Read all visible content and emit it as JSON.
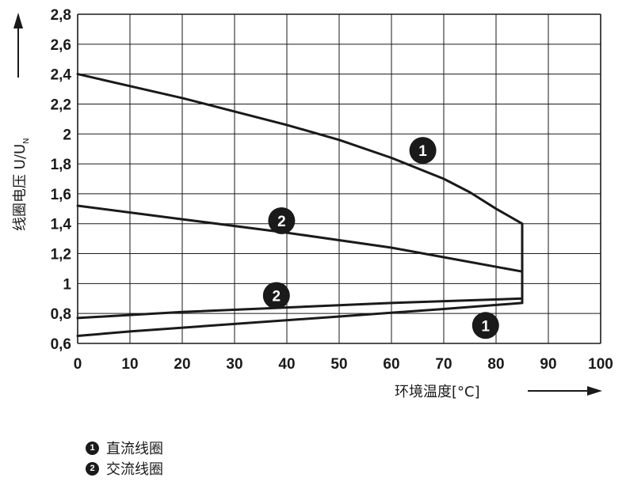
{
  "chart_data": {
    "type": "line",
    "xlabel": "环境温度[°C]",
    "ylabel": "线圈电压 U/U",
    "ylabel_subscript": "N",
    "xlim": [
      0,
      100
    ],
    "ylim": [
      0.6,
      2.8
    ],
    "xticks": [
      "0",
      "10",
      "20",
      "30",
      "40",
      "50",
      "60",
      "70",
      "80",
      "90",
      "100"
    ],
    "yticks": [
      "0,6",
      "0,8",
      "1",
      "1,2",
      "1,4",
      "1,6",
      "1,8",
      "2",
      "2,2",
      "2,4",
      "2,6",
      "2,8"
    ],
    "xtick_values": [
      0,
      10,
      20,
      30,
      40,
      50,
      60,
      70,
      80,
      90,
      100
    ],
    "ytick_values": [
      0.6,
      0.8,
      1.0,
      1.2,
      1.4,
      1.6,
      1.8,
      2.0,
      2.2,
      2.4,
      2.6,
      2.8
    ],
    "grid": true,
    "legend_position": "below-left",
    "series": [
      {
        "name": "直流线圈",
        "marker_label": "1",
        "x": [
          0,
          10,
          20,
          30,
          40,
          50,
          60,
          70,
          75,
          80,
          85,
          85,
          70,
          50,
          30,
          10,
          0
        ],
        "y": [
          2.4,
          2.32,
          2.24,
          2.15,
          2.06,
          1.96,
          1.84,
          1.7,
          1.61,
          1.5,
          1.4,
          0.87,
          0.83,
          0.78,
          0.73,
          0.68,
          0.65
        ]
      },
      {
        "name": "交流线圈",
        "marker_label": "2",
        "x": [
          0,
          20,
          40,
          60,
          85,
          85,
          60,
          40,
          20,
          0
        ],
        "y": [
          1.52,
          1.43,
          1.34,
          1.24,
          1.08,
          0.9,
          0.87,
          0.84,
          0.81,
          0.77
        ]
      }
    ],
    "markers": [
      {
        "label": "1",
        "x": 66,
        "y": 1.89
      },
      {
        "label": "1",
        "x": 78,
        "y": 0.72
      },
      {
        "label": "2",
        "x": 39,
        "y": 1.42
      },
      {
        "label": "2",
        "x": 38,
        "y": 0.92
      }
    ]
  },
  "legend": [
    {
      "badge": "1",
      "label": "直流线圈"
    },
    {
      "badge": "2",
      "label": "交流线圈"
    }
  ],
  "colors": {
    "line": "#1a1a1a",
    "grid": "#1a1a1a",
    "marker": "#1a1a1a"
  }
}
